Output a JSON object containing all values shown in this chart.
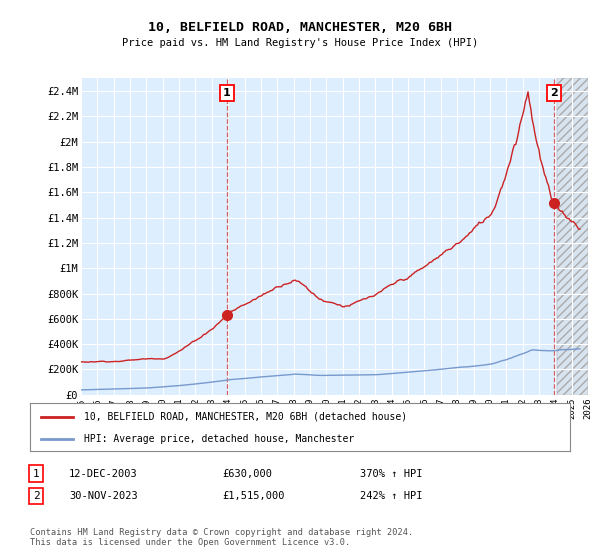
{
  "title": "10, BELFIELD ROAD, MANCHESTER, M20 6BH",
  "subtitle": "Price paid vs. HM Land Registry's House Price Index (HPI)",
  "ylabel_ticks": [
    "£0",
    "£200K",
    "£400K",
    "£600K",
    "£800K",
    "£1M",
    "£1.2M",
    "£1.4M",
    "£1.6M",
    "£1.8M",
    "£2M",
    "£2.2M",
    "£2.4M"
  ],
  "ytick_values": [
    0,
    200000,
    400000,
    600000,
    800000,
    1000000,
    1200000,
    1400000,
    1600000,
    1800000,
    2000000,
    2200000,
    2400000
  ],
  "ylim": [
    0,
    2500000
  ],
  "xmin_year": 1995,
  "xmax_year": 2026,
  "xtick_years": [
    1995,
    1996,
    1997,
    1998,
    1999,
    2000,
    2001,
    2002,
    2003,
    2004,
    2005,
    2006,
    2007,
    2008,
    2009,
    2010,
    2011,
    2012,
    2013,
    2014,
    2015,
    2016,
    2017,
    2018,
    2019,
    2020,
    2021,
    2022,
    2023,
    2024,
    2025,
    2026
  ],
  "hpi_color": "#7799cc",
  "price_color": "#cc2222",
  "background_color": "#ddeeff",
  "plot_bg_color": "#ddeeff",
  "grid_color": "#ffffff",
  "hatch_color": "#bbbbbb",
  "sale1_x": 2003.92,
  "sale1_y": 630000,
  "sale2_x": 2023.92,
  "sale2_y": 1515000,
  "legend_label1": "10, BELFIELD ROAD, MANCHESTER, M20 6BH (detached house)",
  "legend_label2": "HPI: Average price, detached house, Manchester",
  "annotation1_label": "1",
  "annotation2_label": "2",
  "table_row1": [
    "1",
    "12-DEC-2003",
    "£630,000",
    "370% ↑ HPI"
  ],
  "table_row2": [
    "2",
    "30-NOV-2023",
    "£1,515,000",
    "242% ↑ HPI"
  ],
  "footer": "Contains HM Land Registry data © Crown copyright and database right 2024.\nThis data is licensed under the Open Government Licence v3.0."
}
